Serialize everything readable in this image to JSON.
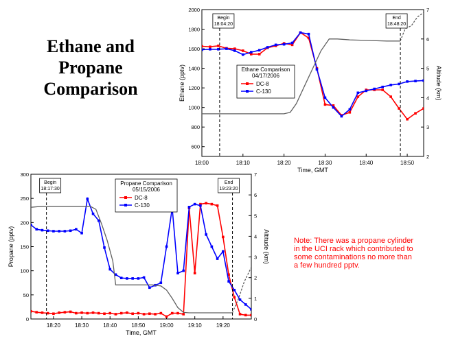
{
  "slide": {
    "title_lines": [
      "Ethane and",
      "Propane",
      "Comparison"
    ],
    "note_lines": [
      "Note: There was a propane cylinder",
      "in the UCI rack which contributed to",
      "some contaminations no more than",
      "a few hundred pptv."
    ]
  },
  "colors": {
    "dc8": "#ff0000",
    "c130": "#0000ff",
    "altitude": "#606060"
  },
  "chart_data": [
    {
      "type": "line",
      "id": "ethane",
      "title": "Ethane Comparison",
      "subtitle": "04/17/2006",
      "xlabel": "Time, GMT",
      "ylabel": "Ethane  (pptv)",
      "y2label": "Altitude  (km)",
      "xlim": [
        1080,
        1134
      ],
      "ylim": [
        500,
        2000
      ],
      "y2lim": [
        2,
        7
      ],
      "x_ticks": [
        1080,
        1090,
        1100,
        1110,
        1120,
        1130
      ],
      "x_tick_labels": [
        "18:00",
        "18:10",
        "18:20",
        "18:30",
        "18:40",
        "18:50"
      ],
      "y_ticks": [
        600,
        800,
        1000,
        1200,
        1400,
        1600,
        1800,
        2000
      ],
      "y2_ticks": [
        2,
        3,
        4,
        5,
        6,
        7
      ],
      "markers": [
        {
          "x": 1084.33,
          "label_lines": [
            "Begin",
            "18:04:20"
          ]
        },
        {
          "x": 1128.33,
          "label_lines": [
            "End",
            "18:48:20"
          ]
        }
      ],
      "series": [
        {
          "name": "DC-8",
          "color": "#ff0000",
          "x": [
            1080,
            1082,
            1084,
            1086,
            1088,
            1090,
            1092,
            1094,
            1096,
            1098,
            1100,
            1102,
            1104,
            1106,
            1108,
            1110,
            1112,
            1114,
            1116,
            1118,
            1120,
            1122,
            1124,
            1126,
            1128,
            1130,
            1132,
            1134
          ],
          "values": [
            1625,
            1620,
            1630,
            1605,
            1600,
            1580,
            1545,
            1545,
            1610,
            1630,
            1655,
            1640,
            1765,
            1710,
            1400,
            1030,
            1020,
            920,
            950,
            1110,
            1180,
            1180,
            1180,
            1110,
            990,
            880,
            940,
            990
          ]
        },
        {
          "name": "C-130",
          "color": "#0000ff",
          "x": [
            1080,
            1082,
            1084,
            1086,
            1088,
            1090,
            1092,
            1094,
            1096,
            1098,
            1100,
            1102,
            1104,
            1106,
            1108,
            1110,
            1112,
            1114,
            1116,
            1118,
            1120,
            1122,
            1124,
            1126,
            1128,
            1130,
            1132,
            1134
          ],
          "values": [
            1590,
            1595,
            1595,
            1600,
            1580,
            1540,
            1565,
            1585,
            1615,
            1640,
            1645,
            1660,
            1765,
            1750,
            1390,
            1100,
            1000,
            910,
            980,
            1150,
            1170,
            1190,
            1210,
            1230,
            1240,
            1265,
            1270,
            1275
          ]
        },
        {
          "name": "Altitude",
          "color": "#606060",
          "axis": "y2",
          "x": [
            1080,
            1085,
            1090,
            1095,
            1099,
            1100,
            1101.5,
            1103,
            1105,
            1107,
            1109,
            1111,
            1113,
            1116,
            1120,
            1125,
            1128.3
          ],
          "values": [
            3.45,
            3.45,
            3.45,
            3.45,
            3.45,
            3.45,
            3.5,
            3.8,
            4.4,
            5.0,
            5.6,
            6.0,
            6.0,
            5.97,
            5.95,
            5.93,
            5.93
          ]
        },
        {
          "name": "Altitude (after End)",
          "color": "#606060",
          "axis": "y2",
          "dashed": true,
          "x": [
            1128.3,
            1129.5,
            1131,
            1132.5,
            1134
          ],
          "values": [
            5.93,
            6.35,
            6.45,
            6.75,
            6.9
          ]
        }
      ]
    },
    {
      "type": "line",
      "id": "propane",
      "title": "Propane Comparison",
      "subtitle": "05/15/2006",
      "xlabel": "Time, GMT",
      "ylabel": "Propane  (pptv)",
      "y2label": "Altitude  (km)",
      "xlim": [
        1092,
        1170
      ],
      "ylim": [
        0,
        300
      ],
      "y2lim": [
        0,
        7
      ],
      "x_ticks": [
        1100,
        1110,
        1120,
        1130,
        1140,
        1150,
        1160
      ],
      "x_tick_labels": [
        "18:20",
        "18:30",
        "18:40",
        "18:50",
        "19:00",
        "19:10",
        "19:20"
      ],
      "y_ticks": [
        0,
        50,
        100,
        150,
        200,
        250,
        300
      ],
      "y2_ticks": [
        0,
        1,
        2,
        3,
        4,
        5,
        6,
        7
      ],
      "markers": [
        {
          "x": 1097.5,
          "label_lines": [
            "Begin",
            "18:17:30"
          ]
        },
        {
          "x": 1163.33,
          "label_lines": [
            "End",
            "19:23:20"
          ]
        }
      ],
      "series": [
        {
          "name": "DC-8",
          "color": "#ff0000",
          "x": [
            1092,
            1094,
            1096,
            1098,
            1100,
            1102,
            1104,
            1106,
            1108,
            1110,
            1112,
            1114,
            1116,
            1118,
            1120,
            1122,
            1124,
            1126,
            1128,
            1130,
            1132,
            1134,
            1136,
            1138,
            1140,
            1142,
            1144,
            1146,
            1148,
            1150,
            1152,
            1154,
            1156,
            1158,
            1160,
            1162,
            1164,
            1166,
            1168,
            1170
          ],
          "values": [
            16,
            14,
            13,
            12,
            11,
            13,
            14,
            15,
            12,
            13,
            12,
            13,
            12,
            11,
            12,
            10,
            12,
            13,
            11,
            12,
            10,
            11,
            10,
            12,
            5,
            12,
            12,
            10,
            230,
            95,
            238,
            240,
            238,
            235,
            170,
            92,
            45,
            10,
            8,
            8
          ]
        },
        {
          "name": "C-130",
          "color": "#0000ff",
          "x": [
            1092,
            1094,
            1096,
            1098,
            1100,
            1102,
            1104,
            1106,
            1108,
            1110,
            1112,
            1114,
            1116,
            1118,
            1120,
            1122,
            1124,
            1126,
            1128,
            1130,
            1132,
            1134,
            1136,
            1138,
            1140,
            1142,
            1144,
            1146,
            1148,
            1150,
            1152,
            1154,
            1156,
            1158,
            1160,
            1162,
            1164,
            1166,
            1168,
            1170
          ],
          "values": [
            195,
            186,
            184,
            183,
            182,
            182,
            182,
            183,
            186,
            178,
            249,
            218,
            204,
            148,
            103,
            92,
            85,
            84,
            84,
            84,
            86,
            65,
            70,
            75,
            150,
            230,
            95,
            100,
            232,
            238,
            235,
            175,
            150,
            125,
            140,
            78,
            60,
            40,
            30,
            20
          ]
        },
        {
          "name": "Altitude",
          "color": "#606060",
          "axis": "y2",
          "x": [
            1092,
            1096,
            1100,
            1105,
            1110,
            1113,
            1115,
            1117,
            1119,
            1121,
            1122,
            1125,
            1130,
            1135,
            1138,
            1140,
            1142,
            1144,
            1146,
            1148,
            1150,
            1155,
            1160,
            1163.3
          ],
          "values": [
            5.4,
            5.45,
            5.45,
            5.45,
            5.45,
            5.45,
            5.3,
            4.6,
            3.8,
            2.8,
            1.65,
            1.65,
            1.65,
            1.65,
            1.6,
            1.4,
            1.0,
            0.55,
            0.32,
            0.3,
            0.3,
            0.3,
            0.3,
            0.3
          ]
        },
        {
          "name": "Altitude (after End)",
          "color": "#606060",
          "axis": "y2",
          "dashed": true,
          "x": [
            1163.3,
            1165.5,
            1167.5,
            1170
          ],
          "values": [
            0.3,
            1.0,
            1.8,
            2.5
          ]
        }
      ]
    }
  ]
}
